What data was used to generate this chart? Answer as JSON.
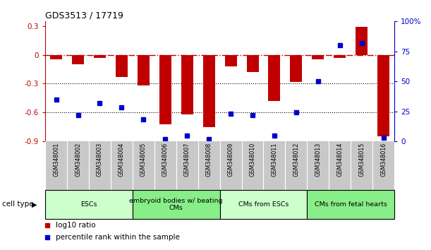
{
  "title": "GDS3513 / 17719",
  "samples": [
    "GSM348001",
    "GSM348002",
    "GSM348003",
    "GSM348004",
    "GSM348005",
    "GSM348006",
    "GSM348007",
    "GSM348008",
    "GSM348009",
    "GSM348010",
    "GSM348011",
    "GSM348012",
    "GSM348013",
    "GSM348014",
    "GSM348015",
    "GSM348016"
  ],
  "log10_ratio": [
    -0.05,
    -0.1,
    -0.03,
    -0.23,
    -0.32,
    -0.72,
    -0.62,
    -0.75,
    -0.12,
    -0.18,
    -0.48,
    -0.28,
    -0.05,
    -0.03,
    0.29,
    -0.85
  ],
  "percentile_rank": [
    35,
    22,
    32,
    28,
    18,
    2,
    5,
    2,
    23,
    22,
    5,
    24,
    50,
    80,
    82,
    3
  ],
  "bar_color": "#c00000",
  "dot_color": "#0000cc",
  "ylim_left": [
    -0.9,
    0.35
  ],
  "ylim_right": [
    0,
    100
  ],
  "yticks_left": [
    -0.9,
    -0.6,
    -0.3,
    0,
    0.3
  ],
  "yticks_right": [
    0,
    25,
    50,
    75,
    100
  ],
  "ytick_labels_right": [
    "0",
    "25",
    "50",
    "75",
    "100%"
  ],
  "dotted_lines": [
    -0.3,
    -0.6
  ],
  "cell_type_groups": [
    {
      "label": "ESCs",
      "start": 0,
      "end": 3,
      "color": "#ccffcc"
    },
    {
      "label": "embryoid bodies w/ beating\nCMs",
      "start": 4,
      "end": 7,
      "color": "#88ee88"
    },
    {
      "label": "CMs from ESCs",
      "start": 8,
      "end": 11,
      "color": "#ccffcc"
    },
    {
      "label": "CMs from fetal hearts",
      "start": 12,
      "end": 15,
      "color": "#88ee88"
    }
  ],
  "cell_type_label": "cell type",
  "legend_ratio_label": "log10 ratio",
  "legend_pct_label": "percentile rank within the sample",
  "xtick_bg": "#c8c8c8",
  "bar_width": 0.55
}
